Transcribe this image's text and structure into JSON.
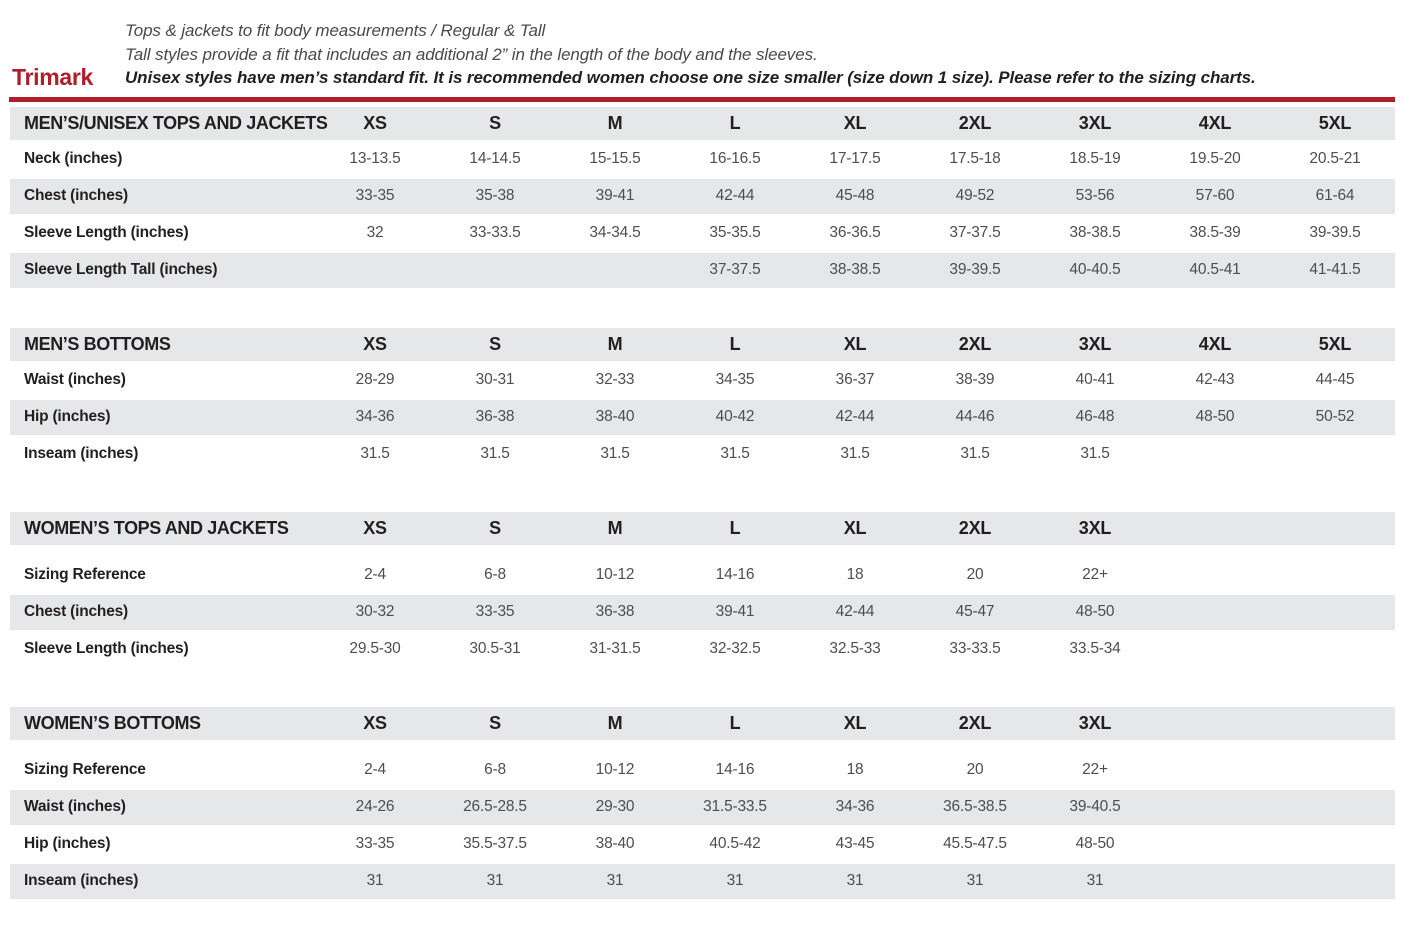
{
  "brand": "Trimark",
  "intro": {
    "line1": "Tops & jackets to fit body measurements / Regular & Tall",
    "line2": "Tall styles provide a fit that includes an additional 2” in the length of the body and the sleeves.",
    "line3": "Unisex styles have men’s standard fit. It is recommended women choose one size smaller (size down 1 size).  Please refer to the sizing charts."
  },
  "colors": {
    "accent_red": "#B01E2C",
    "stripe_gray": "#E6E7E8",
    "label_text": "#231F20",
    "value_text": "#4D4E50"
  },
  "tables": [
    {
      "id": "mens-unisex-tops-and-jackets",
      "title": "MEN’S/UNISEX TOPS AND JACKETS",
      "gap_after_header": false,
      "columns": [
        "XS",
        "S",
        "M",
        "L",
        "XL",
        "2XL",
        "3XL",
        "4XL",
        "5XL"
      ],
      "rows": [
        {
          "label": "Neck (inches)",
          "values": [
            "13-13.5",
            "14-14.5",
            "15-15.5",
            "16-16.5",
            "17-17.5",
            "17.5-18",
            "18.5-19",
            "19.5-20",
            "20.5-21"
          ]
        },
        {
          "label": "Chest (inches)",
          "values": [
            "33-35",
            "35-38",
            "39-41",
            "42-44",
            "45-48",
            "49-52",
            "53-56",
            "57-60",
            "61-64"
          ]
        },
        {
          "label": "Sleeve Length (inches)",
          "values": [
            "32",
            "33-33.5",
            "34-34.5",
            "35-35.5",
            "36-36.5",
            "37-37.5",
            "38-38.5",
            "38.5-39",
            "39-39.5"
          ]
        },
        {
          "label": "Sleeve Length Tall (inches)",
          "values": [
            "",
            "",
            "",
            "37-37.5",
            "38-38.5",
            "39-39.5",
            "40-40.5",
            "40.5-41",
            "41-41.5"
          ]
        }
      ]
    },
    {
      "id": "mens-bottoms",
      "title": "MEN’S BOTTOMS",
      "gap_after_header": false,
      "columns": [
        "XS",
        "S",
        "M",
        "L",
        "XL",
        "2XL",
        "3XL",
        "4XL",
        "5XL"
      ],
      "rows": [
        {
          "label": "Waist (inches)",
          "values": [
            "28-29",
            "30-31",
            "32-33",
            "34-35",
            "36-37",
            "38-39",
            "40-41",
            "42-43",
            "44-45"
          ]
        },
        {
          "label": "Hip (inches)",
          "values": [
            "34-36",
            "36-38",
            "38-40",
            "40-42",
            "42-44",
            "44-46",
            "46-48",
            "48-50",
            "50-52"
          ]
        },
        {
          "label": "Inseam (inches)",
          "values": [
            "31.5",
            "31.5",
            "31.5",
            "31.5",
            "31.5",
            "31.5",
            "31.5",
            "",
            ""
          ]
        }
      ]
    },
    {
      "id": "womens-tops-and-jackets",
      "title": "WOMEN’S TOPS AND JACKETS",
      "gap_after_header": true,
      "columns": [
        "XS",
        "S",
        "M",
        "L",
        "XL",
        "2XL",
        "3XL",
        "",
        ""
      ],
      "rows": [
        {
          "label": "Sizing Reference",
          "values": [
            "2-4",
            "6-8",
            "10-12",
            "14-16",
            "18",
            "20",
            "22+",
            "",
            ""
          ]
        },
        {
          "label": "Chest (inches)",
          "values": [
            "30-32",
            "33-35",
            "36-38",
            "39-41",
            "42-44",
            "45-47",
            "48-50",
            "",
            ""
          ]
        },
        {
          "label": "Sleeve Length (inches)",
          "values": [
            "29.5-30",
            "30.5-31",
            "31-31.5",
            "32-32.5",
            "32.5-33",
            "33-33.5",
            "33.5-34",
            "",
            ""
          ]
        }
      ]
    },
    {
      "id": "womens-bottoms",
      "title": "WOMEN’S BOTTOMS",
      "gap_after_header": true,
      "columns": [
        "XS",
        "S",
        "M",
        "L",
        "XL",
        "2XL",
        "3XL",
        "",
        ""
      ],
      "rows": [
        {
          "label": "Sizing Reference",
          "values": [
            "2-4",
            "6-8",
            "10-12",
            "14-16",
            "18",
            "20",
            "22+",
            "",
            ""
          ]
        },
        {
          "label": "Waist (inches)",
          "values": [
            "24-26",
            "26.5-28.5",
            "29-30",
            "31.5-33.5",
            "34-36",
            "36.5-38.5",
            "39-40.5",
            "",
            ""
          ]
        },
        {
          "label": "Hip (inches)",
          "values": [
            "33-35",
            "35.5-37.5",
            "38-40",
            "40.5-42",
            "43-45",
            "45.5-47.5",
            "48-50",
            "",
            ""
          ]
        },
        {
          "label": "Inseam (inches)",
          "values": [
            "31",
            "31",
            "31",
            "31",
            "31",
            "31",
            "31",
            "",
            ""
          ]
        }
      ]
    }
  ]
}
